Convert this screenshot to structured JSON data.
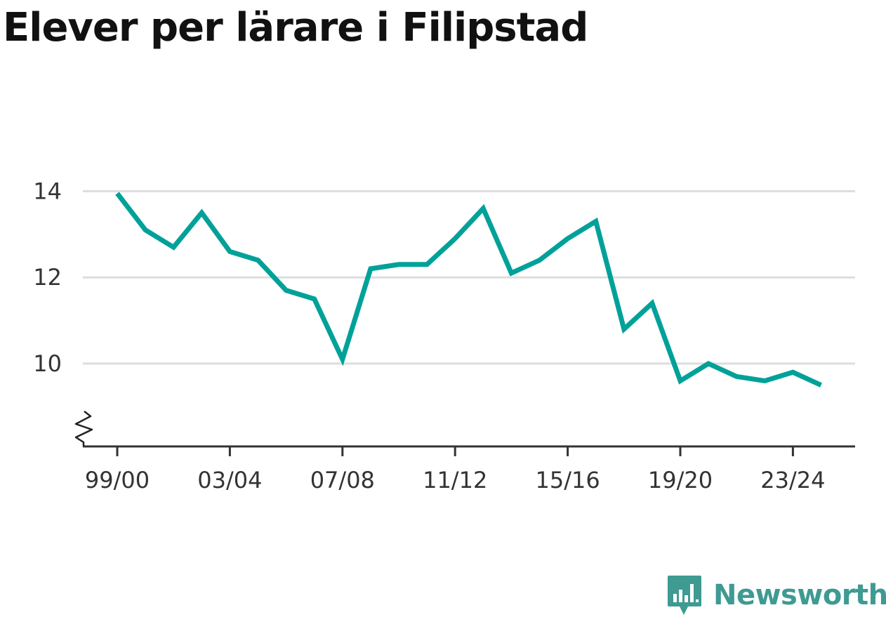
{
  "title": "Elever per lärare i Filipstad",
  "brand": {
    "name": "Newsworthy",
    "icon": "bar-chart-speech-bubble-icon",
    "color": "#3e9a92"
  },
  "chart_data": {
    "type": "line",
    "title": "Elever per lärare i Filipstad",
    "xlabel": "",
    "ylabel": "",
    "x": [
      "99/00",
      "00/01",
      "01/02",
      "02/03",
      "03/04",
      "04/05",
      "05/06",
      "06/07",
      "07/08",
      "08/09",
      "09/10",
      "10/11",
      "11/12",
      "12/13",
      "13/14",
      "14/15",
      "15/16",
      "16/17",
      "17/18",
      "18/19",
      "19/20",
      "20/21",
      "21/22",
      "22/23",
      "23/24",
      "24/25"
    ],
    "x_tick_labels": [
      "99/00",
      "03/04",
      "07/08",
      "11/12",
      "15/16",
      "19/20",
      "23/24"
    ],
    "series": [
      {
        "color": "#00a199",
        "values": [
          13.95,
          13.1,
          12.7,
          13.5,
          12.6,
          12.4,
          11.7,
          11.5,
          10.1,
          12.2,
          12.3,
          12.3,
          12.9,
          13.6,
          12.1,
          12.4,
          12.9,
          13.3,
          10.8,
          11.4,
          9.6,
          10.0,
          9.7,
          9.6,
          9.8,
          9.5
        ]
      }
    ],
    "y_ticks": [
      10,
      12,
      14
    ],
    "y_tick_labels": [
      "10",
      "12",
      "14"
    ],
    "ylim": [
      8.1,
      14.3
    ],
    "grid": true,
    "y_axis_break": true,
    "legend": "none"
  }
}
